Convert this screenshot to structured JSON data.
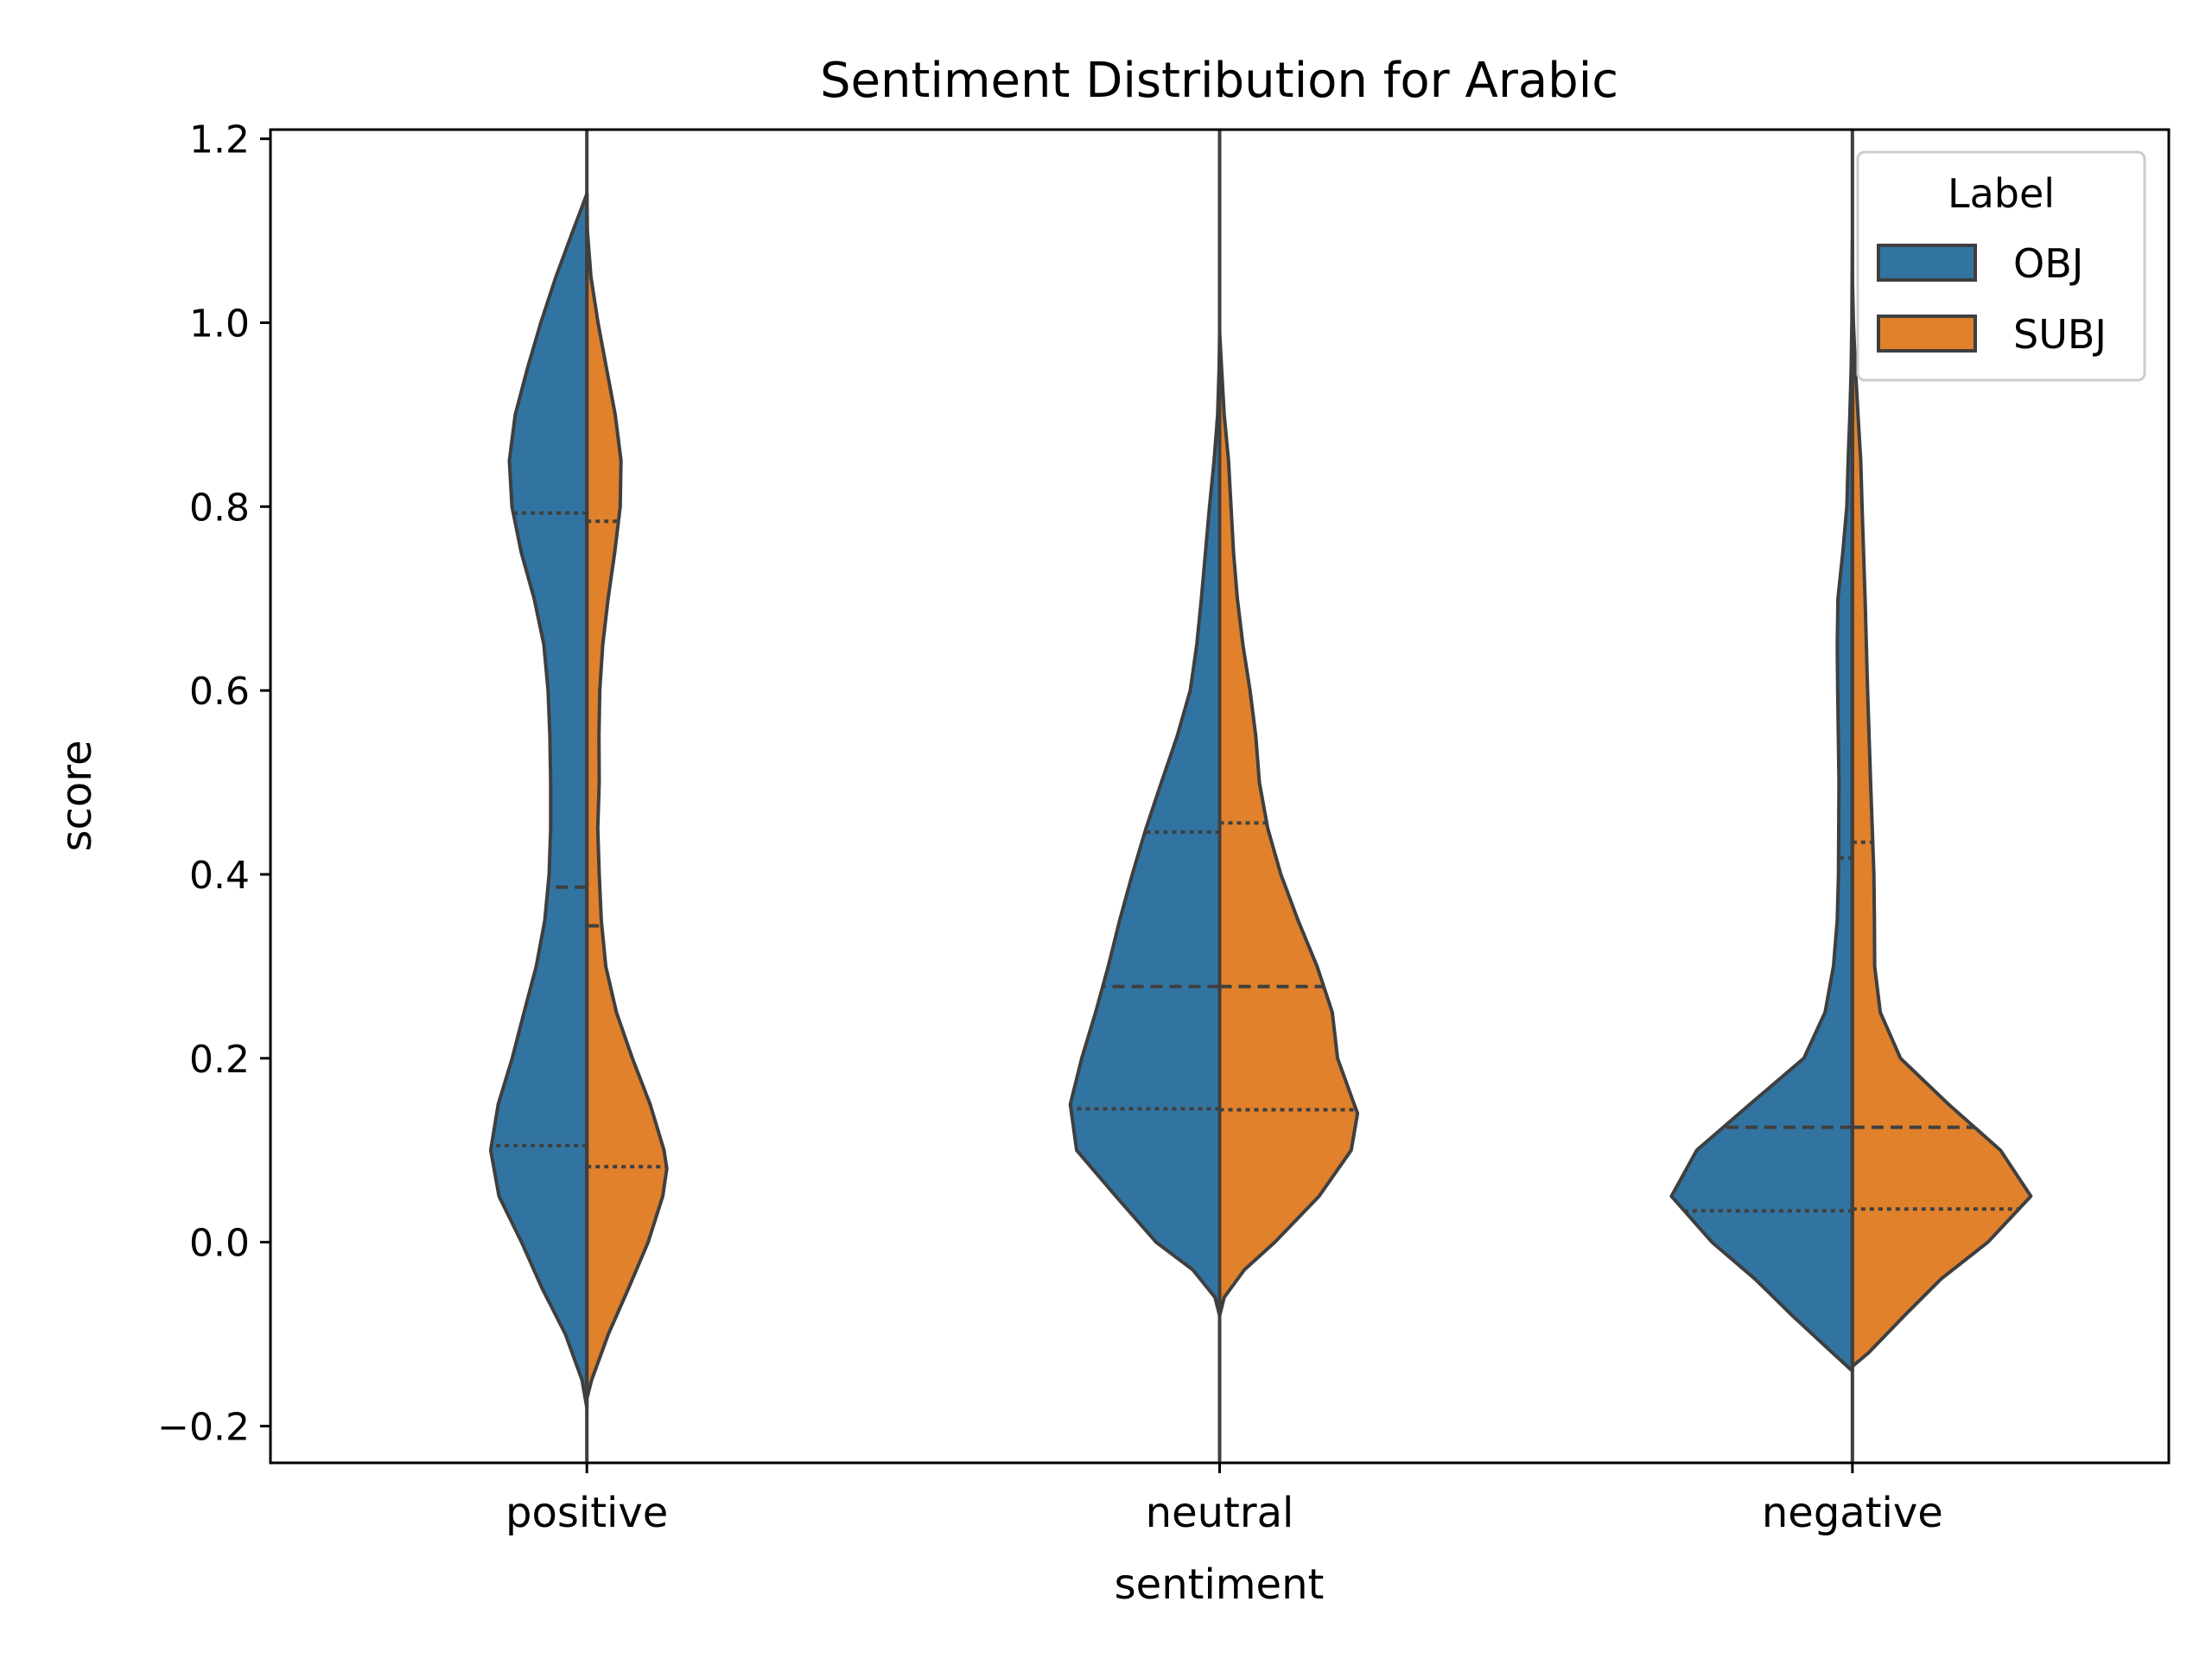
{
  "chart_data": {
    "type": "violin",
    "title": "Sentiment Distribution for Arabic",
    "xlabel": "sentiment",
    "ylabel": "score",
    "categories": [
      "positive",
      "neutral",
      "negative"
    ],
    "ylim": [
      -0.24,
      1.21
    ],
    "yticks": [
      -0.2,
      0.0,
      0.2,
      0.4,
      0.6,
      0.8,
      1.0,
      1.2
    ],
    "ytick_labels": [
      "−0.2",
      "0.0",
      "0.2",
      "0.4",
      "0.6",
      "0.8",
      "1.0",
      "1.2"
    ],
    "grid": false,
    "split": true,
    "inner": "quartile",
    "legend": {
      "title": "Label",
      "position": "top-right"
    },
    "series": [
      {
        "name": "OBJ",
        "color": "#3274a1",
        "violins": [
          {
            "category": "positive",
            "profile": [
              [
                -0.18,
                0.0
              ],
              [
                -0.15,
                0.019
              ],
              [
                -0.1,
                0.085
              ],
              [
                -0.05,
                0.177
              ],
              [
                0.0,
                0.258
              ],
              [
                0.05,
                0.347
              ],
              [
                0.1,
                0.38
              ],
              [
                0.15,
                0.35
              ],
              [
                0.2,
                0.295
              ],
              [
                0.25,
                0.248
              ],
              [
                0.3,
                0.2
              ],
              [
                0.35,
                0.166
              ],
              [
                0.4,
                0.149
              ],
              [
                0.45,
                0.143
              ],
              [
                0.5,
                0.143
              ],
              [
                0.55,
                0.146
              ],
              [
                0.6,
                0.153
              ],
              [
                0.65,
                0.17
              ],
              [
                0.7,
                0.208
              ],
              [
                0.75,
                0.259
              ],
              [
                0.8,
                0.296
              ],
              [
                0.85,
                0.306
              ],
              [
                0.9,
                0.283
              ],
              [
                0.95,
                0.235
              ],
              [
                1.0,
                0.182
              ],
              [
                1.05,
                0.122
              ],
              [
                1.1,
                0.055
              ],
              [
                1.14,
                0.0
              ]
            ],
            "quartiles": [
              0.105,
              0.386,
              0.793
            ]
          },
          {
            "category": "neutral",
            "profile": [
              [
                -0.08,
                0.0
              ],
              [
                -0.06,
                0.018
              ],
              [
                -0.03,
                0.106
              ],
              [
                0.0,
                0.251
              ],
              [
                0.05,
                0.41
              ],
              [
                0.1,
                0.565
              ],
              [
                0.15,
                0.59
              ],
              [
                0.2,
                0.545
              ],
              [
                0.25,
                0.49
              ],
              [
                0.3,
                0.44
              ],
              [
                0.35,
                0.395
              ],
              [
                0.4,
                0.345
              ],
              [
                0.45,
                0.291
              ],
              [
                0.5,
                0.23
              ],
              [
                0.55,
                0.168
              ],
              [
                0.6,
                0.116
              ],
              [
                0.65,
                0.09
              ],
              [
                0.7,
                0.072
              ],
              [
                0.75,
                0.056
              ],
              [
                0.8,
                0.04
              ],
              [
                0.85,
                0.022
              ],
              [
                0.9,
                0.008
              ],
              [
                0.95,
                0.002
              ],
              [
                0.99,
                0.0
              ]
            ],
            "quartiles": [
              0.145,
              0.278,
              0.446
            ]
          },
          {
            "category": "negative",
            "profile": [
              [
                -0.14,
                0.0
              ],
              [
                -0.12,
                0.08
              ],
              [
                -0.08,
                0.237
              ],
              [
                -0.04,
                0.385
              ],
              [
                0.0,
                0.555
              ],
              [
                0.05,
                0.715
              ],
              [
                0.1,
                0.615
              ],
              [
                0.15,
                0.405
              ],
              [
                0.2,
                0.192
              ],
              [
                0.25,
                0.108
              ],
              [
                0.3,
                0.075
              ],
              [
                0.35,
                0.06
              ],
              [
                0.4,
                0.055
              ],
              [
                0.5,
                0.053
              ],
              [
                0.6,
                0.058
              ],
              [
                0.65,
                0.06
              ],
              [
                0.7,
                0.057
              ],
              [
                0.75,
                0.038
              ],
              [
                0.8,
                0.022
              ],
              [
                0.85,
                0.017
              ],
              [
                0.9,
                0.01
              ],
              [
                0.95,
                0.005
              ],
              [
                1.0,
                0.002
              ],
              [
                1.09,
                0.0
              ]
            ],
            "quartiles": [
              0.034,
              0.125,
              0.418
            ]
          }
        ]
      },
      {
        "name": "SUBJ",
        "color": "#e1812c",
        "violins": [
          {
            "category": "positive",
            "profile": [
              [
                -0.17,
                0.0
              ],
              [
                -0.15,
                0.019
              ],
              [
                -0.1,
                0.085
              ],
              [
                -0.05,
                0.165
              ],
              [
                0.0,
                0.242
              ],
              [
                0.05,
                0.3
              ],
              [
                0.08,
                0.316
              ],
              [
                0.1,
                0.305
              ],
              [
                0.15,
                0.25
              ],
              [
                0.2,
                0.18
              ],
              [
                0.25,
                0.117
              ],
              [
                0.3,
                0.075
              ],
              [
                0.35,
                0.057
              ],
              [
                0.4,
                0.049
              ],
              [
                0.45,
                0.043
              ],
              [
                0.5,
                0.049
              ],
              [
                0.55,
                0.048
              ],
              [
                0.6,
                0.051
              ],
              [
                0.65,
                0.063
              ],
              [
                0.7,
                0.084
              ],
              [
                0.75,
                0.11
              ],
              [
                0.8,
                0.132
              ],
              [
                0.85,
                0.135
              ],
              [
                0.9,
                0.112
              ],
              [
                0.95,
                0.078
              ],
              [
                1.0,
                0.044
              ],
              [
                1.05,
                0.016
              ],
              [
                1.1,
                0.002
              ],
              [
                1.14,
                0.0
              ]
            ],
            "quartiles": [
              0.082,
              0.344,
              0.784
            ]
          },
          {
            "category": "neutral",
            "profile": [
              [
                -0.08,
                0.0
              ],
              [
                -0.06,
                0.018
              ],
              [
                -0.03,
                0.098
              ],
              [
                0.0,
                0.218
              ],
              [
                0.05,
                0.393
              ],
              [
                0.1,
                0.52
              ],
              [
                0.14,
                0.545
              ],
              [
                0.2,
                0.466
              ],
              [
                0.25,
                0.445
              ],
              [
                0.3,
                0.385
              ],
              [
                0.35,
                0.31
              ],
              [
                0.4,
                0.242
              ],
              [
                0.45,
                0.19
              ],
              [
                0.5,
                0.157
              ],
              [
                0.55,
                0.143
              ],
              [
                0.6,
                0.12
              ],
              [
                0.65,
                0.092
              ],
              [
                0.7,
                0.07
              ],
              [
                0.75,
                0.055
              ],
              [
                0.8,
                0.045
              ],
              [
                0.85,
                0.035
              ],
              [
                0.9,
                0.018
              ],
              [
                0.95,
                0.008
              ],
              [
                0.99,
                0.0
              ]
            ],
            "quartiles": [
              0.144,
              0.278,
              0.456
            ]
          },
          {
            "category": "negative",
            "profile": [
              [
                -0.135,
                0.0
              ],
              [
                -0.12,
                0.065
              ],
              [
                -0.08,
                0.205
              ],
              [
                -0.04,
                0.35
              ],
              [
                0.0,
                0.535
              ],
              [
                0.05,
                0.705
              ],
              [
                0.1,
                0.585
              ],
              [
                0.15,
                0.38
              ],
              [
                0.2,
                0.19
              ],
              [
                0.25,
                0.11
              ],
              [
                0.3,
                0.088
              ],
              [
                0.35,
                0.087
              ],
              [
                0.4,
                0.085
              ],
              [
                0.5,
                0.072
              ],
              [
                0.6,
                0.06
              ],
              [
                0.7,
                0.05
              ],
              [
                0.8,
                0.038
              ],
              [
                0.85,
                0.033
              ],
              [
                0.9,
                0.022
              ],
              [
                0.95,
                0.012
              ],
              [
                1.0,
                0.004
              ],
              [
                1.05,
                0.0
              ]
            ],
            "quartiles": [
              0.036,
              0.125,
              0.435
            ]
          }
        ]
      }
    ]
  }
}
